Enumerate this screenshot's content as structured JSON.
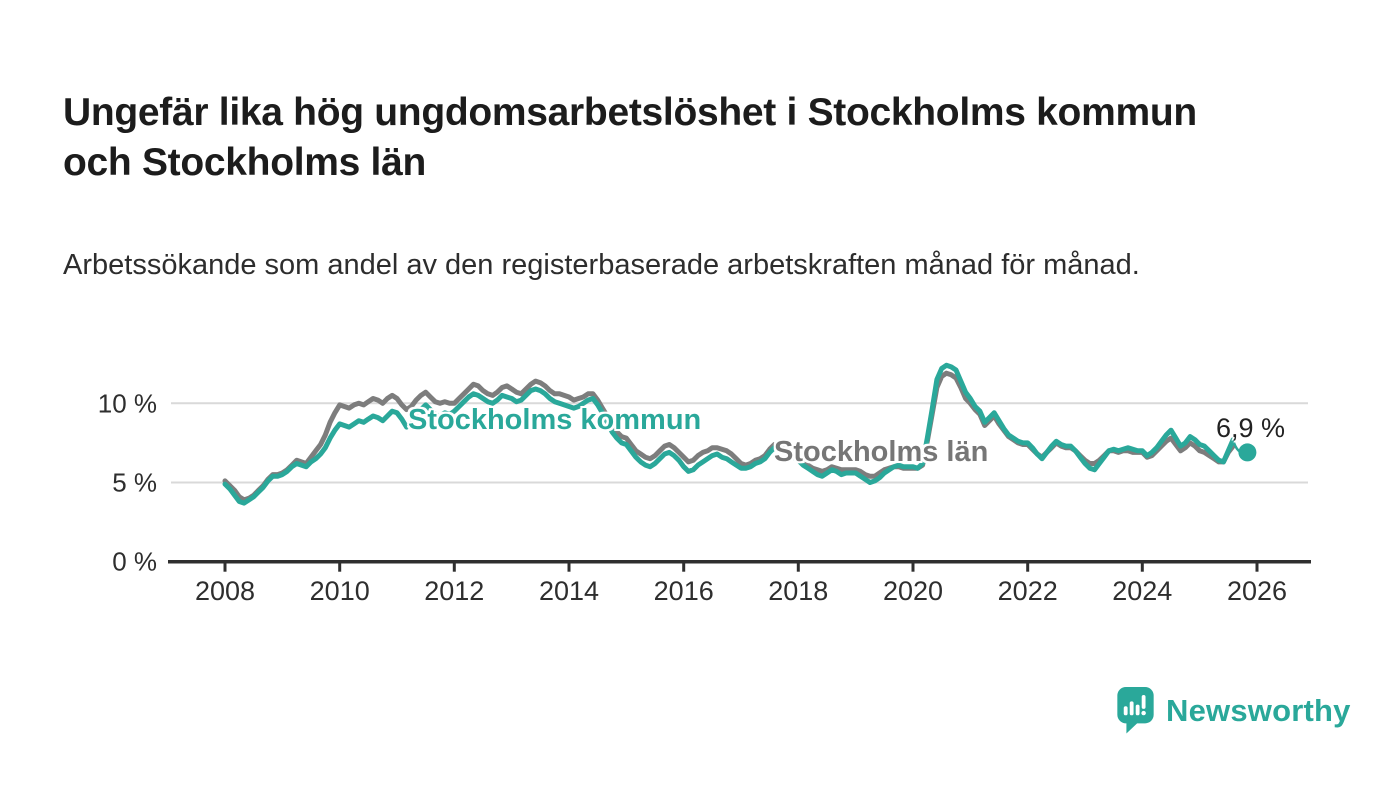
{
  "header": {
    "title": "Ungefär lika hög ungdomsarbetslöshet i Stockholms kommun och Stockholms län",
    "subtitle": "Arbetssökande som andel av den registerbaserade arbetskraften månad för månad."
  },
  "chart_data": {
    "type": "line",
    "title": "Ungefär lika hög ungdomsarbetslöshet i Stockholms kommun och Stockholms län",
    "unit": "%",
    "frequency": "monthly",
    "x_ticks": [
      "2008",
      "2010",
      "2012",
      "2014",
      "2016",
      "2018",
      "2020",
      "2022",
      "2024",
      "2026"
    ],
    "y_ticks": [
      {
        "value": 0,
        "label": "0 %"
      },
      {
        "value": 5,
        "label": "5 %"
      },
      {
        "value": 10,
        "label": "10 %"
      }
    ],
    "ylim": [
      0,
      13
    ],
    "xlim_years": [
      2007.0,
      2026.95
    ],
    "grid": "horizontal",
    "legend_position": "inline-labels",
    "series": [
      {
        "name": "Stockholms län",
        "color": "#7d7d7d",
        "start_year": 2008,
        "start_month": 1,
        "end_dot": false,
        "values": [
          5.1,
          4.8,
          4.5,
          4.1,
          3.9,
          4.0,
          4.2,
          4.5,
          4.8,
          5.2,
          5.5,
          5.5,
          5.6,
          5.8,
          6.1,
          6.4,
          6.3,
          6.2,
          6.6,
          7.0,
          7.4,
          8.0,
          8.8,
          9.4,
          9.9,
          9.8,
          9.7,
          9.9,
          10.0,
          9.9,
          10.1,
          10.3,
          10.2,
          10.0,
          10.3,
          10.5,
          10.3,
          9.9,
          9.6,
          9.8,
          10.2,
          10.5,
          10.7,
          10.4,
          10.1,
          10.0,
          10.1,
          10.0,
          10.0,
          10.3,
          10.6,
          10.9,
          11.2,
          11.1,
          10.8,
          10.6,
          10.5,
          10.7,
          11.0,
          11.1,
          10.9,
          10.7,
          10.6,
          10.9,
          11.2,
          11.4,
          11.3,
          11.1,
          10.8,
          10.6,
          10.6,
          10.5,
          10.4,
          10.2,
          10.3,
          10.4,
          10.6,
          10.6,
          10.2,
          9.7,
          9.2,
          8.6,
          8.2,
          7.9,
          7.8,
          7.4,
          7.0,
          6.8,
          6.6,
          6.5,
          6.7,
          7.0,
          7.3,
          7.4,
          7.2,
          6.9,
          6.6,
          6.3,
          6.4,
          6.7,
          6.9,
          7.0,
          7.2,
          7.2,
          7.1,
          7.0,
          6.8,
          6.5,
          6.2,
          6.1,
          6.2,
          6.4,
          6.5,
          6.7,
          7.1,
          7.4,
          7.4,
          7.2,
          7.0,
          6.8,
          6.5,
          6.3,
          6.1,
          5.9,
          5.8,
          5.7,
          5.8,
          6.0,
          5.9,
          5.8,
          5.8,
          5.8,
          5.8,
          5.7,
          5.5,
          5.4,
          5.4,
          5.6,
          5.8,
          5.9,
          6.0,
          6.0,
          5.9,
          5.9,
          5.9,
          5.9,
          6.1,
          7.6,
          9.3,
          11.0,
          11.7,
          11.9,
          11.8,
          11.6,
          11.0,
          10.3,
          10.0,
          9.6,
          9.3,
          8.6,
          8.9,
          9.2,
          8.7,
          8.3,
          7.9,
          7.7,
          7.5,
          7.4,
          7.4,
          7.1,
          6.8,
          6.6,
          6.9,
          7.2,
          7.5,
          7.3,
          7.2,
          7.2,
          7.0,
          6.7,
          6.4,
          6.2,
          6.2,
          6.4,
          6.7,
          7.0,
          7.0,
          6.9,
          7.0,
          7.0,
          6.9,
          6.9,
          6.9,
          6.6,
          6.7,
          7.0,
          7.3,
          7.6,
          7.8,
          7.4,
          7.0,
          7.2,
          7.5,
          7.3,
          7.0,
          6.9,
          6.7,
          6.5,
          6.3,
          6.3,
          6.9,
          7.3
        ]
      },
      {
        "name": "Stockholms kommun",
        "color": "#2aa89a",
        "start_year": 2008,
        "start_month": 1,
        "end_dot": true,
        "values": [
          4.9,
          4.6,
          4.2,
          3.8,
          3.7,
          3.9,
          4.1,
          4.4,
          4.7,
          5.1,
          5.4,
          5.4,
          5.5,
          5.7,
          6.0,
          6.2,
          6.1,
          6.0,
          6.3,
          6.5,
          6.8,
          7.2,
          7.8,
          8.3,
          8.7,
          8.6,
          8.5,
          8.7,
          8.9,
          8.8,
          9.0,
          9.2,
          9.1,
          8.9,
          9.2,
          9.5,
          9.4,
          9.0,
          8.5,
          8.7,
          9.2,
          9.6,
          9.9,
          9.6,
          9.3,
          9.2,
          9.4,
          9.3,
          9.5,
          9.8,
          10.1,
          10.4,
          10.6,
          10.5,
          10.3,
          10.1,
          10.0,
          10.2,
          10.5,
          10.4,
          10.3,
          10.1,
          10.2,
          10.5,
          10.8,
          10.9,
          10.8,
          10.6,
          10.3,
          10.1,
          10.0,
          9.9,
          9.8,
          9.7,
          9.8,
          10.0,
          10.2,
          10.3,
          9.9,
          9.4,
          8.8,
          8.2,
          7.8,
          7.5,
          7.4,
          7.0,
          6.6,
          6.3,
          6.1,
          6.0,
          6.2,
          6.5,
          6.8,
          6.9,
          6.7,
          6.4,
          6.0,
          5.7,
          5.8,
          6.1,
          6.3,
          6.5,
          6.7,
          6.8,
          6.6,
          6.5,
          6.3,
          6.1,
          5.9,
          5.9,
          6.0,
          6.2,
          6.3,
          6.5,
          6.9,
          7.2,
          7.3,
          7.0,
          6.8,
          6.6,
          6.4,
          6.1,
          5.9,
          5.7,
          5.5,
          5.4,
          5.6,
          5.8,
          5.7,
          5.5,
          5.6,
          5.6,
          5.6,
          5.4,
          5.2,
          5.0,
          5.1,
          5.3,
          5.6,
          5.8,
          6.0,
          6.1,
          6.0,
          6.0,
          6.0,
          5.9,
          6.2,
          7.8,
          9.6,
          11.5,
          12.2,
          12.4,
          12.3,
          12.1,
          11.4,
          10.7,
          10.3,
          9.8,
          9.5,
          8.8,
          9.1,
          9.4,
          8.9,
          8.4,
          8.0,
          7.8,
          7.6,
          7.5,
          7.5,
          7.2,
          6.8,
          6.5,
          6.9,
          7.3,
          7.6,
          7.4,
          7.3,
          7.3,
          7.0,
          6.6,
          6.2,
          5.9,
          5.8,
          6.2,
          6.6,
          7.0,
          7.1,
          7.0,
          7.1,
          7.2,
          7.1,
          7.0,
          7.0,
          6.7,
          6.9,
          7.2,
          7.6,
          8.0,
          8.3,
          7.8,
          7.3,
          7.5,
          7.9,
          7.7,
          7.4,
          7.3,
          7.0,
          6.7,
          6.4,
          6.3,
          7.0,
          7.7,
          7.4,
          7.1,
          6.9
        ]
      }
    ],
    "end_label": {
      "text": "6,9 %",
      "series": "Stockholms kommun",
      "value": 6.9
    }
  },
  "footer": {
    "brand": "Newsworthy"
  },
  "colors": {
    "accent": "#2aa89a",
    "line_gray": "#7d7d7d",
    "label_gray": "#767676",
    "grid": "#d9d9d9",
    "axis": "#2f2f2f",
    "tick_text": "#2e2e2e",
    "title_text": "#1c1c1c"
  }
}
